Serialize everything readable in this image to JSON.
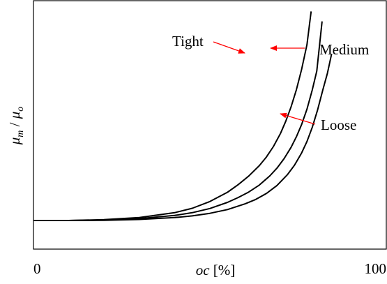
{
  "chart_data": {
    "type": "line",
    "title": "",
    "xlabel_parts": [
      "oc",
      "[%]"
    ],
    "ylabel_parts": [
      "μ",
      "m",
      "/",
      "μ",
      "o"
    ],
    "xlim": [
      0,
      100
    ],
    "x_ticks": [
      "0",
      "100"
    ],
    "y_ticks": [],
    "grid": false,
    "legend": "none",
    "series": [
      {
        "name": "Tight",
        "x": [
          0,
          10,
          20,
          30,
          40,
          45,
          50,
          55,
          58,
          61,
          64,
          66,
          68,
          70,
          71.5,
          73,
          74.5,
          76,
          77.5,
          78.7
        ],
        "y": [
          0,
          0.0,
          0.004,
          0.014,
          0.037,
          0.058,
          0.09,
          0.134,
          0.17,
          0.211,
          0.26,
          0.301,
          0.351,
          0.413,
          0.471,
          0.539,
          0.62,
          0.718,
          0.834,
          0.992
        ]
      },
      {
        "name": "Medium",
        "x": [
          0,
          10,
          20,
          30,
          40,
          45,
          50,
          55,
          58,
          61,
          64,
          67,
          69,
          71,
          73,
          74.5,
          76,
          77.5,
          79,
          80.3,
          81.8
        ],
        "y": [
          0,
          0.0,
          0.002,
          0.009,
          0.024,
          0.037,
          0.057,
          0.086,
          0.109,
          0.135,
          0.168,
          0.212,
          0.248,
          0.293,
          0.347,
          0.397,
          0.456,
          0.528,
          0.618,
          0.709,
          0.945
        ]
      },
      {
        "name": "Loose",
        "x": [
          0,
          10,
          20,
          30,
          40,
          45,
          50,
          55,
          60,
          63,
          66,
          69,
          72,
          74,
          76,
          77.5,
          79,
          80.5,
          82,
          83.3,
          84.5
        ],
        "y": [
          0,
          0.0,
          0.001,
          0.005,
          0.014,
          0.022,
          0.034,
          0.052,
          0.079,
          0.1,
          0.128,
          0.166,
          0.218,
          0.263,
          0.321,
          0.375,
          0.441,
          0.523,
          0.619,
          0.698,
          0.791
        ]
      }
    ],
    "annotations": [
      {
        "text": "Tight",
        "target_series": "Tight"
      },
      {
        "text": "Medium",
        "target_series": "Medium"
      },
      {
        "text": "Loose",
        "target_series": "Loose"
      }
    ],
    "line_color": "#000000",
    "arrow_color": "#ff0000"
  }
}
